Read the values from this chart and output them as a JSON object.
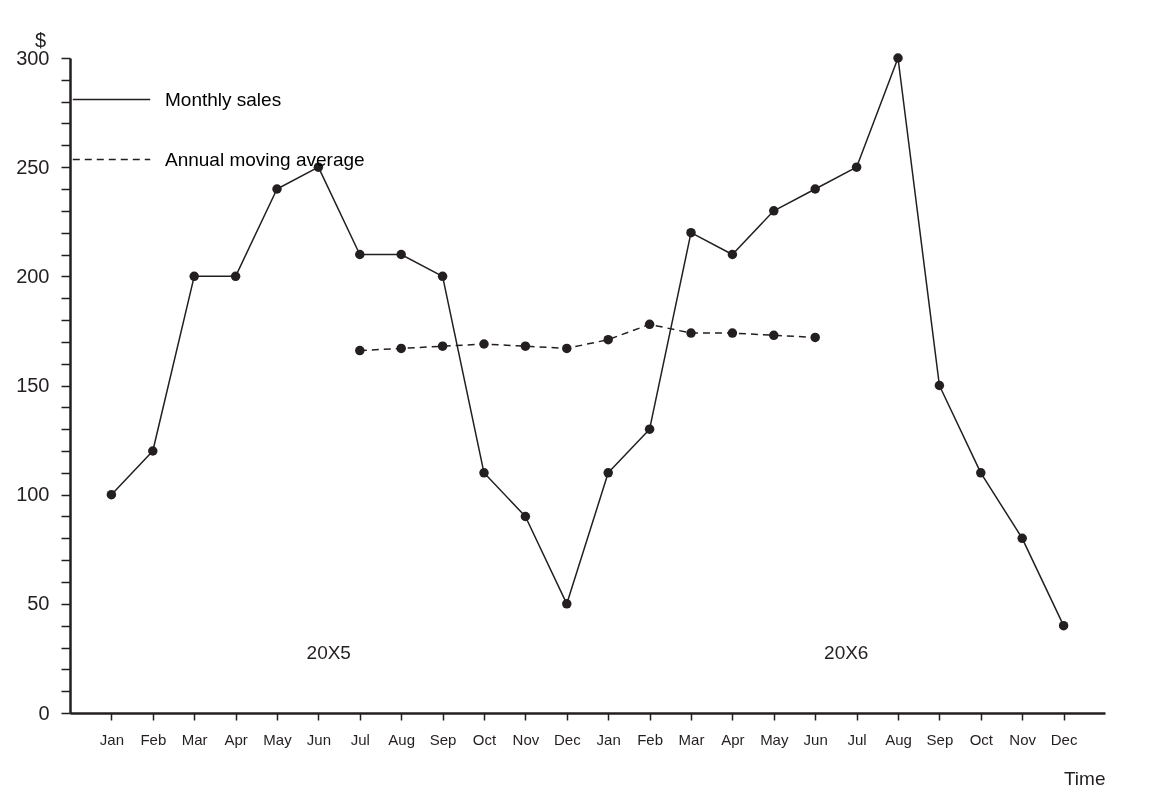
{
  "chart_data": {
    "type": "line",
    "xlabel": "Time",
    "ylabel": "$",
    "categories": [
      "Jan",
      "Feb",
      "Mar",
      "Apr",
      "May",
      "Jun",
      "Jul",
      "Aug",
      "Sep",
      "Oct",
      "Nov",
      "Dec",
      "Jan",
      "Feb",
      "Mar",
      "Apr",
      "May",
      "Jun",
      "Jul",
      "Aug",
      "Sep",
      "Oct",
      "Nov",
      "Dec"
    ],
    "series": [
      {
        "name": "Monthly sales",
        "color": "#231f20",
        "line_style": "solid",
        "values": [
          100,
          120,
          200,
          200,
          240,
          250,
          210,
          210,
          200,
          110,
          90,
          50,
          110,
          130,
          220,
          210,
          230,
          240,
          250,
          300,
          150,
          110,
          80,
          40
        ]
      },
      {
        "name": "Annual moving average",
        "color": "#231f20",
        "line_style": "dashed",
        "values": [
          null,
          null,
          null,
          null,
          null,
          null,
          166,
          167,
          168,
          169,
          168,
          167,
          171,
          178,
          174,
          174,
          173,
          172,
          null,
          null,
          null,
          null,
          null,
          null
        ]
      }
    ],
    "ylim": [
      0,
      300
    ],
    "yticks": [
      0,
      {
        "value": 10,
        "label": null
      },
      {
        "value": 20,
        "label": null
      },
      {
        "value": 30,
        "label": null
      },
      {
        "value": 40,
        "label": null
      },
      50,
      {
        "value": 60,
        "label": null
      },
      {
        "value": 70,
        "label": null
      },
      {
        "value": 80,
        "label": null
      },
      {
        "value": 90,
        "label": null
      },
      100,
      {
        "value": 110,
        "label": null
      },
      {
        "value": 120,
        "label": null
      },
      {
        "value": 130,
        "label": null
      },
      {
        "value": 140,
        "label": null
      },
      150,
      {
        "value": 160,
        "label": null
      },
      {
        "value": 170,
        "label": null
      },
      {
        "value": 180,
        "label": null
      },
      {
        "value": 190,
        "label": null
      },
      200,
      {
        "value": 210,
        "label": null
      },
      {
        "value": 220,
        "label": null
      },
      {
        "value": 230,
        "label": null
      },
      {
        "value": 240,
        "label": null
      },
      250,
      {
        "value": 260,
        "label": null
      },
      {
        "value": 270,
        "label": null
      },
      {
        "value": 280,
        "label": null
      },
      {
        "value": 290,
        "label": null
      },
      300
    ],
    "annotations": [
      "20X5",
      "20X6"
    ],
    "marker": "circle",
    "grid": false,
    "legend": "top left"
  }
}
